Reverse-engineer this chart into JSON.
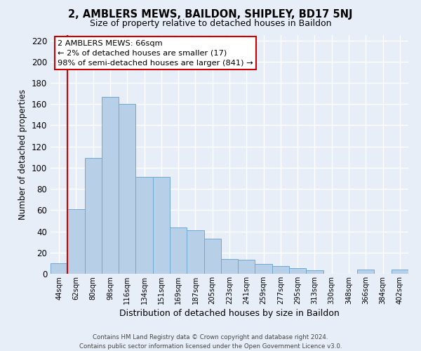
{
  "title": "2, AMBLERS MEWS, BAILDON, SHIPLEY, BD17 5NJ",
  "subtitle": "Size of property relative to detached houses in Baildon",
  "xlabel": "Distribution of detached houses by size in Baildon",
  "ylabel": "Number of detached properties",
  "bar_labels": [
    "44sqm",
    "62sqm",
    "80sqm",
    "98sqm",
    "116sqm",
    "134sqm",
    "151sqm",
    "169sqm",
    "187sqm",
    "205sqm",
    "223sqm",
    "241sqm",
    "259sqm",
    "277sqm",
    "295sqm",
    "313sqm",
    "330sqm",
    "348sqm",
    "366sqm",
    "384sqm",
    "402sqm"
  ],
  "bar_values": [
    10,
    61,
    109,
    167,
    160,
    91,
    91,
    44,
    41,
    33,
    14,
    13,
    9,
    7,
    5,
    3,
    0,
    0,
    4,
    0,
    4
  ],
  "bar_color": "#b8cfe8",
  "bar_edge_color": "#6fa8d6",
  "vline_color": "#cc0000",
  "vline_x_index": 1,
  "ylim": [
    0,
    225
  ],
  "yticks": [
    0,
    20,
    40,
    60,
    80,
    100,
    120,
    140,
    160,
    180,
    200,
    220
  ],
  "annotation_line1": "2 AMBLERS MEWS: 66sqm",
  "annotation_line2": "← 2% of detached houses are smaller (17)",
  "annotation_line3": "98% of semi-detached houses are larger (841) →",
  "annotation_box_facecolor": "#ffffff",
  "annotation_box_edgecolor": "#cc0000",
  "footer_line1": "Contains HM Land Registry data © Crown copyright and database right 2024.",
  "footer_line2": "Contains public sector information licensed under the Open Government Licence v3.0.",
  "background_color": "#e8eef8",
  "grid_color": "#ffffff"
}
